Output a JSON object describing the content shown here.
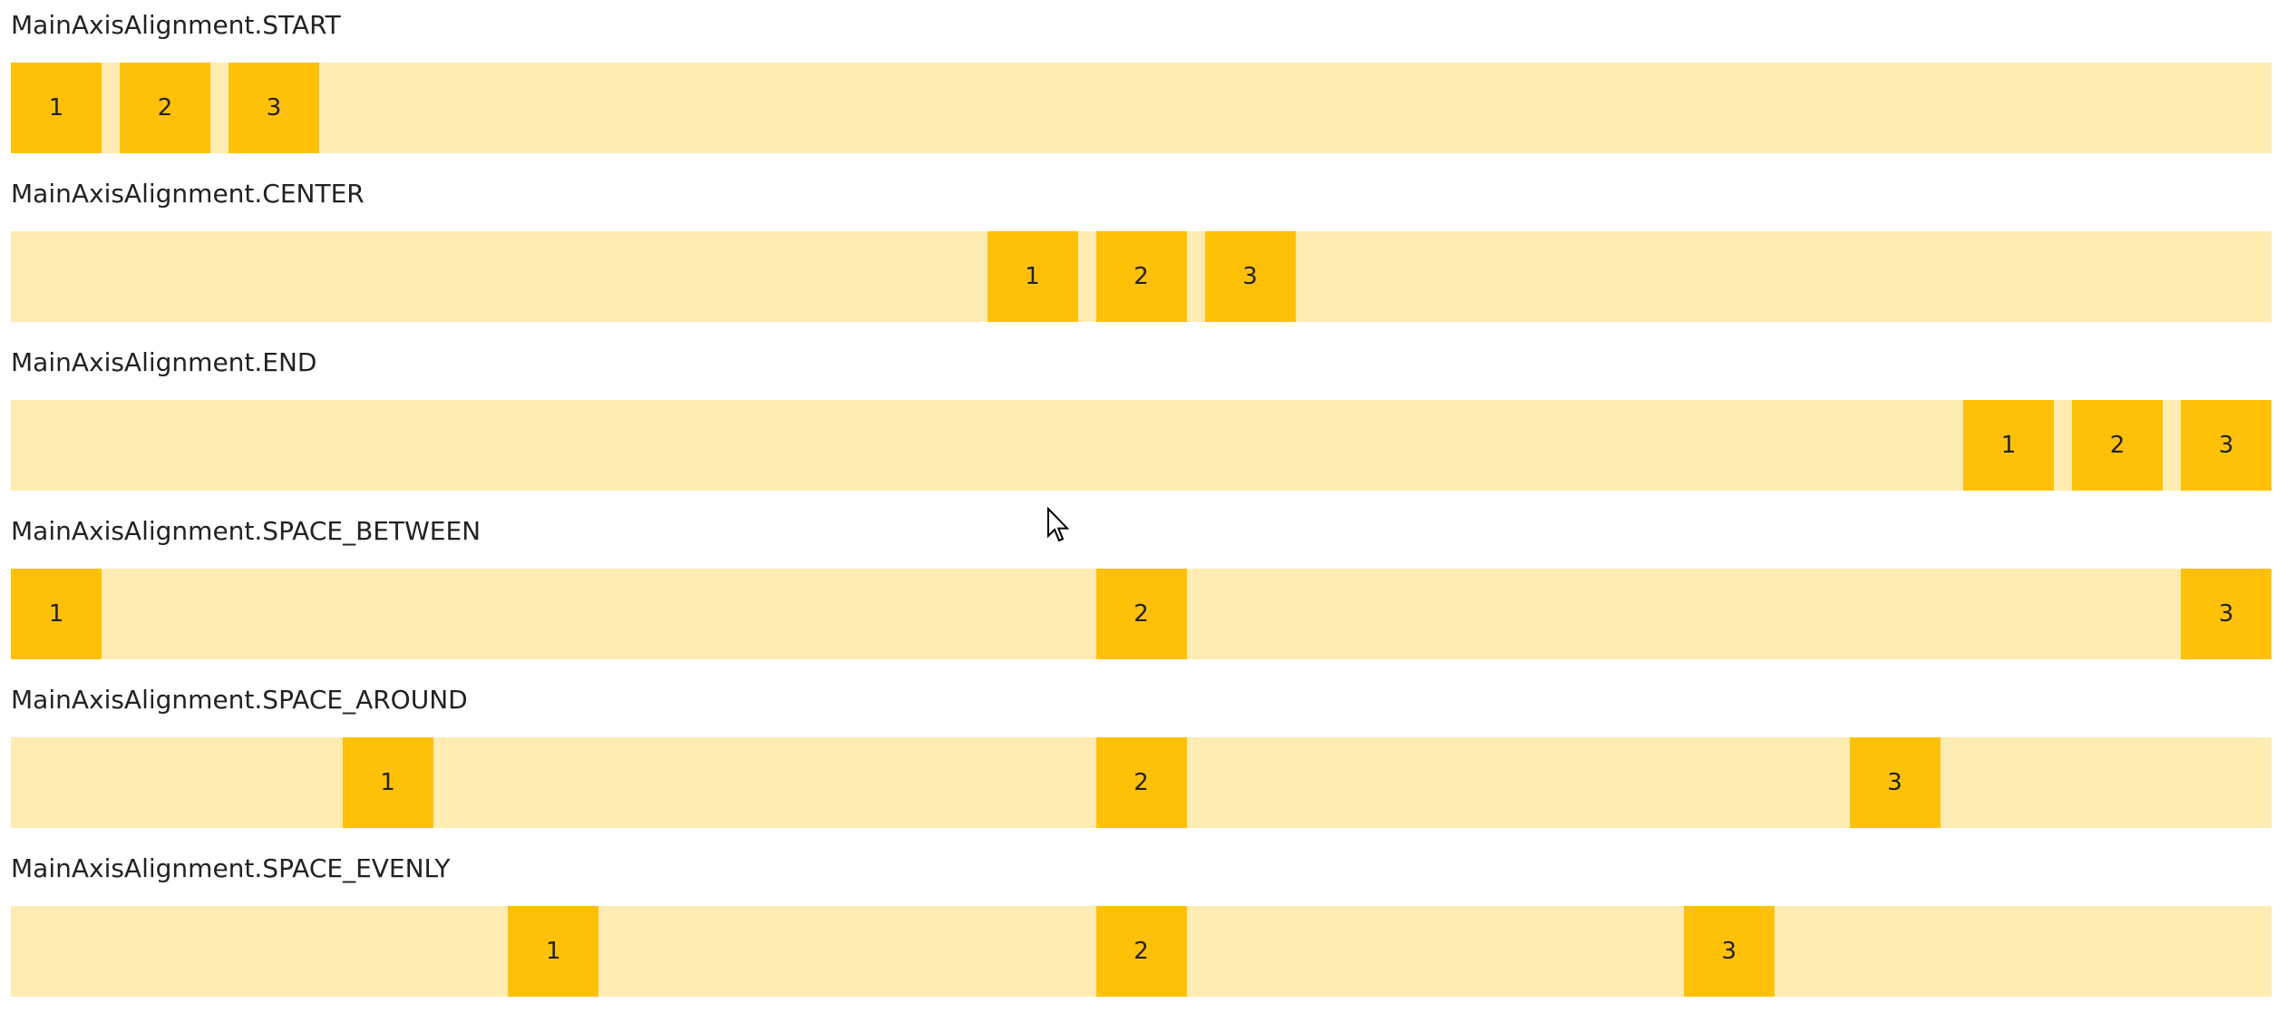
{
  "colors": {
    "row_background": "#ffecb3",
    "box": "#ffc107",
    "text": "#222222"
  },
  "sections": [
    {
      "title": "MainAxisAlignment.START",
      "justify": "flex-start",
      "boxes": [
        "1",
        "2",
        "3"
      ]
    },
    {
      "title": "MainAxisAlignment.CENTER",
      "justify": "center",
      "boxes": [
        "1",
        "2",
        "3"
      ]
    },
    {
      "title": "MainAxisAlignment.END",
      "justify": "flex-end",
      "boxes": [
        "1",
        "2",
        "3"
      ]
    },
    {
      "title": "MainAxisAlignment.SPACE_BETWEEN",
      "justify": "space-between",
      "boxes": [
        "1",
        "2",
        "3"
      ]
    },
    {
      "title": "MainAxisAlignment.SPACE_AROUND",
      "justify": "space-around",
      "boxes": [
        "1",
        "2",
        "3"
      ]
    },
    {
      "title": "MainAxisAlignment.SPACE_EVENLY",
      "justify": "space-evenly",
      "boxes": [
        "1",
        "2",
        "3"
      ]
    }
  ],
  "cursor_icon": "arrow-pointer"
}
